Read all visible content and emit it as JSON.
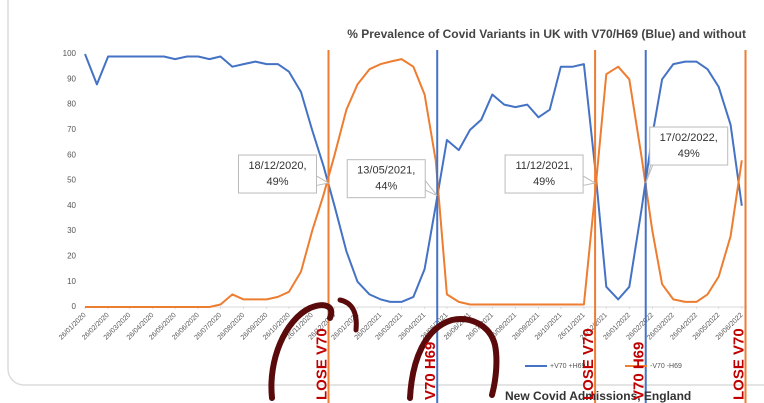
{
  "chart_data": {
    "type": "line",
    "title": "% Prevalence of Covid Variants in UK with V70/H69 (Blue) and without",
    "x": [
      "26/01/2020",
      "11/02/2020",
      "26/02/2020",
      "11/03/2020",
      "26/03/2020",
      "11/04/2020",
      "26/04/2020",
      "11/05/2020",
      "26/05/2020",
      "11/06/2020",
      "26/06/2020",
      "11/07/2020",
      "26/07/2020",
      "11/08/2020",
      "26/08/2020",
      "11/09/2020",
      "26/09/2020",
      "11/10/2020",
      "26/10/2020",
      "11/11/2020",
      "26/11/2020",
      "11/12/2020",
      "26/12/2020",
      "11/01/2021",
      "26/01/2021",
      "11/02/2021",
      "26/02/2021",
      "11/03/2021",
      "26/03/2021",
      "11/04/2021",
      "26/04/2021",
      "11/05/2021",
      "26/05/2021",
      "11/06/2021",
      "26/06/2021",
      "11/07/2021",
      "26/07/2021",
      "11/08/2021",
      "26/08/2021",
      "11/09/2021",
      "26/09/2021",
      "11/10/2021",
      "26/10/2021",
      "11/11/2021",
      "26/11/2021",
      "11/12/2021",
      "26/12/2021",
      "11/01/2022",
      "26/01/2022",
      "11/02/2022",
      "26/02/2022",
      "11/03/2022",
      "26/03/2022",
      "11/04/2022",
      "26/04/2022",
      "11/05/2022",
      "26/05/2022",
      "11/06/2022",
      "26/06/2022"
    ],
    "series": [
      {
        "name": "+V70 +H69",
        "color": "#4472c4",
        "values": [
          100,
          88,
          99,
          99,
          99,
          99,
          99,
          99,
          98,
          99,
          99,
          98,
          99,
          95,
          96,
          97,
          96,
          96,
          93,
          85,
          70,
          56,
          40,
          22,
          10,
          5,
          3,
          2,
          2,
          4,
          15,
          40,
          66,
          62,
          70,
          74,
          84,
          80,
          79,
          80,
          75,
          78,
          95,
          95,
          96,
          55,
          8,
          3,
          8,
          38,
          68,
          90,
          96,
          97,
          97,
          94,
          87,
          72,
          40
        ]
      },
      {
        "name": "-V70 -H69",
        "color": "#ed7d31",
        "values": [
          0,
          0,
          0,
          0,
          0,
          0,
          0,
          0,
          0,
          0,
          0,
          0,
          1,
          5,
          3,
          3,
          3,
          4,
          6,
          14,
          30,
          44,
          60,
          78,
          88,
          94,
          96,
          97,
          98,
          95,
          84,
          58,
          5,
          2,
          1,
          1,
          1,
          1,
          1,
          1,
          1,
          1,
          1,
          1,
          1,
          45,
          92,
          95,
          90,
          60,
          30,
          9,
          3,
          2,
          2,
          5,
          12,
          28,
          58
        ]
      }
    ],
    "xlim": [
      "26/01/2020",
      "03/07/2022"
    ],
    "xticks": [
      "26/01/2020",
      "26/02/2020",
      "26/03/2020",
      "26/04/2020",
      "26/05/2020",
      "26/06/2020",
      "26/07/2020",
      "26/08/2020",
      "26/09/2020",
      "26/10/2020",
      "26/11/2020",
      "26/12/2020",
      "26/01/2021",
      "26/02/2021",
      "26/03/2021",
      "26/04/2021",
      "26/05/2021",
      "26/06/2021",
      "26/07/2021",
      "26/08/2021",
      "26/09/2021",
      "26/10/2021",
      "26/11/2021",
      "26/12/2021",
      "26/01/2022",
      "26/02/2022",
      "26/03/2022",
      "26/04/2022",
      "26/05/2022",
      "26/06/2022"
    ],
    "ylim": [
      0,
      100
    ],
    "yticks": [
      0,
      10,
      20,
      30,
      40,
      50,
      60,
      70,
      80,
      90,
      100
    ],
    "annotations": [
      {
        "label": "18/12/2020,",
        "value": 49,
        "value_label": "49%"
      },
      {
        "label": "13/05/2021,",
        "value": 44,
        "value_label": "44%"
      },
      {
        "label": "11/12/2021,",
        "value": 49,
        "value_label": "49%"
      },
      {
        "label": "17/02/2022,",
        "value": 49,
        "value_label": "49%"
      }
    ],
    "markers": [
      {
        "x": "18/12/2020",
        "color": "#ed7d31",
        "note": "LOSE V70"
      },
      {
        "x": "13/05/2021",
        "color": "#4472c4",
        "note": "V70 H69"
      },
      {
        "x": "11/12/2021",
        "color": "#ed7d31",
        "note": "LOSE V70"
      },
      {
        "x": "17/02/2022",
        "color": "#4472c4",
        "note": "V70 H69"
      },
      {
        "x": "01/07/2022",
        "color": "#ed7d31",
        "note": "LOSE V70"
      }
    ],
    "next_chart_title": "New Covid Admissions, England"
  }
}
